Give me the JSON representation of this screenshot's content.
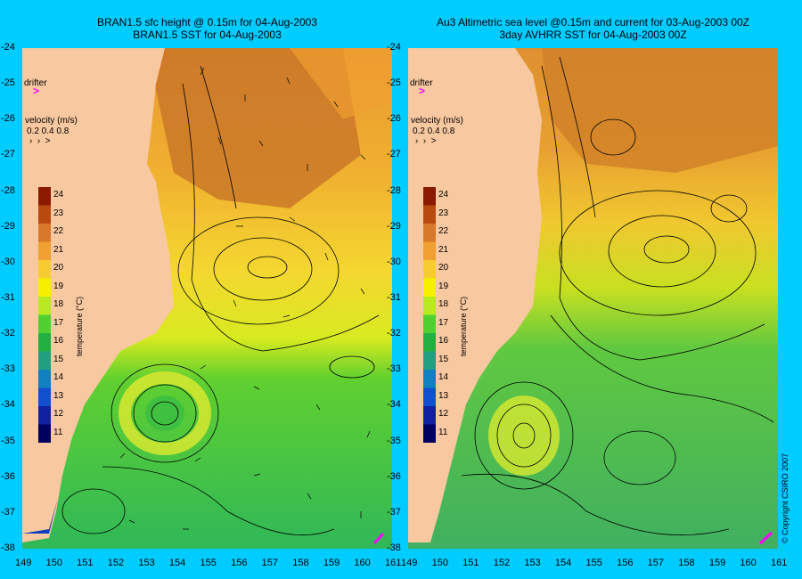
{
  "left_panel": {
    "title_line1": "BRAN1.5 sfc height @ 0.15m for 04-Aug-2003",
    "title_line2": "BRAN1.5 SST for 04-Aug-2003",
    "drifter_label": "drifter",
    "velocity_label": "velocity (m/s)",
    "velocity_scale": "0.2 0.4 0.8"
  },
  "right_panel": {
    "title_line1": "Au3 Altimetric sea level  @0.15m and current for 03-Aug-2003 00Z",
    "title_line2": "3day AVHRR SST for 04-Aug-2003 00Z",
    "drifter_label": "drifter",
    "velocity_label": "velocity (m/s)",
    "velocity_scale": "0.2 0.4 0.8"
  },
  "colorbar": {
    "label": "temperature (°C)",
    "ticks": [
      "24",
      "23",
      "22",
      "21",
      "20",
      "19",
      "18",
      "17",
      "16",
      "15",
      "14",
      "13",
      "12",
      "11"
    ],
    "colors": [
      "#8b1a00",
      "#b84a10",
      "#d8782a",
      "#f0a030",
      "#f8cc30",
      "#f4f000",
      "#b8e820",
      "#50d030",
      "#20b040",
      "#20a080",
      "#1080c0",
      "#1050d0",
      "#1020a0",
      "#000060"
    ]
  },
  "latitude_ticks": [
    "-24",
    "-25",
    "-26",
    "-27",
    "-28",
    "-29",
    "-30",
    "-31",
    "-32",
    "-33",
    "-34",
    "-35",
    "-36",
    "-37",
    "-38"
  ],
  "longitude_ticks": [
    "149",
    "150",
    "151",
    "152",
    "153",
    "154",
    "155",
    "156",
    "157",
    "158",
    "159",
    "160",
    "161"
  ],
  "copyright": "© Copyright CSIRO 2007",
  "colors": {
    "background": "#00ccff",
    "land": "#f8c8a0",
    "drifter": "#ff00ff"
  }
}
